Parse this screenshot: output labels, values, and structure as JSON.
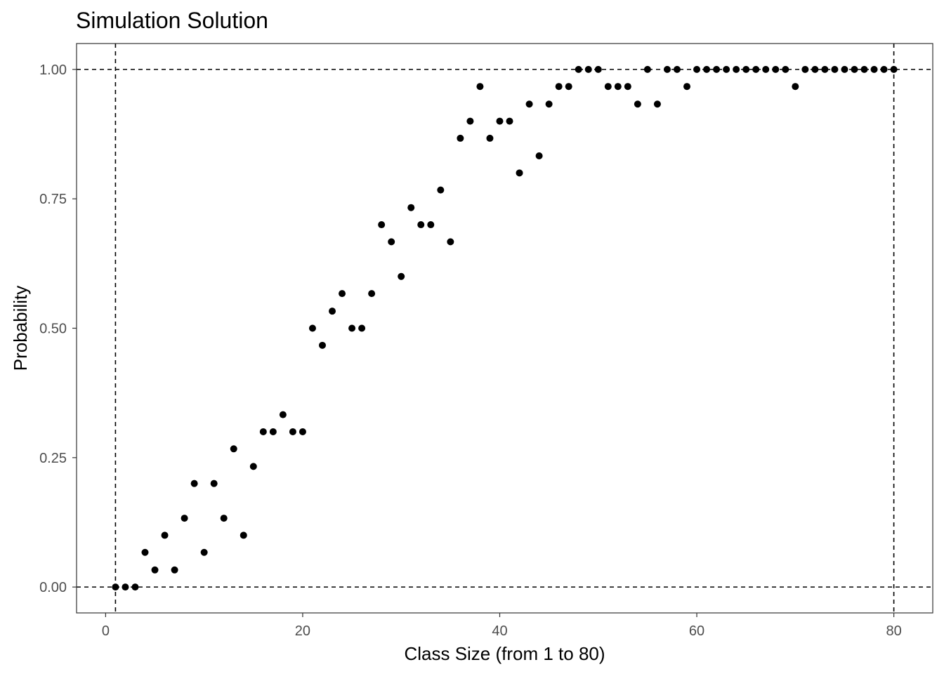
{
  "chart_data": {
    "type": "scatter",
    "title": "Simulation Solution",
    "xlabel": "Class Size (from 1 to 80)",
    "ylabel": "Probability",
    "xlim": [
      -2.95,
      83.95
    ],
    "ylim": [
      -0.05,
      1.05
    ],
    "x_ticks": [
      0,
      20,
      40,
      60,
      80
    ],
    "x_tick_labels": [
      "0",
      "20",
      "40",
      "60",
      "80"
    ],
    "y_ticks": [
      0,
      0.25,
      0.5,
      0.75,
      1
    ],
    "y_tick_labels": [
      "0.00",
      "0.25",
      "0.50",
      "0.75",
      "1.00"
    ],
    "grid": false,
    "reference_lines": {
      "vertical_x": [
        1,
        80
      ],
      "horizontal_y": [
        0,
        1
      ],
      "style": "dashed"
    },
    "point_color": "#000000",
    "x": [
      1,
      2,
      3,
      4,
      5,
      6,
      7,
      8,
      9,
      10,
      11,
      12,
      13,
      14,
      15,
      16,
      17,
      18,
      19,
      20,
      21,
      22,
      23,
      24,
      25,
      26,
      27,
      28,
      29,
      30,
      31,
      32,
      33,
      34,
      35,
      36,
      37,
      38,
      39,
      40,
      41,
      42,
      43,
      44,
      45,
      46,
      47,
      48,
      49,
      50,
      51,
      52,
      53,
      54,
      55,
      56,
      57,
      58,
      59,
      60,
      61,
      62,
      63,
      64,
      65,
      66,
      67,
      68,
      69,
      70,
      71,
      72,
      73,
      74,
      75,
      76,
      77,
      78,
      79,
      80
    ],
    "y": [
      0,
      0,
      0,
      0.067,
      0.033,
      0.1,
      0.033,
      0.133,
      0.2,
      0.067,
      0.2,
      0.133,
      0.267,
      0.1,
      0.233,
      0.3,
      0.3,
      0.333,
      0.3,
      0.3,
      0.5,
      0.467,
      0.533,
      0.567,
      0.5,
      0.5,
      0.567,
      0.7,
      0.667,
      0.6,
      0.733,
      0.7,
      0.7,
      0.767,
      0.667,
      0.867,
      0.9,
      0.967,
      0.867,
      0.9,
      0.9,
      0.8,
      0.933,
      0.833,
      0.933,
      0.967,
      0.967,
      1,
      1,
      1,
      0.967,
      0.967,
      0.967,
      0.933,
      1,
      0.933,
      1,
      1,
      0.967,
      1,
      1,
      1,
      1,
      1,
      1,
      1,
      1,
      1,
      1,
      0.967,
      1,
      1,
      1,
      1,
      1,
      1,
      1,
      1,
      1,
      1
    ]
  }
}
